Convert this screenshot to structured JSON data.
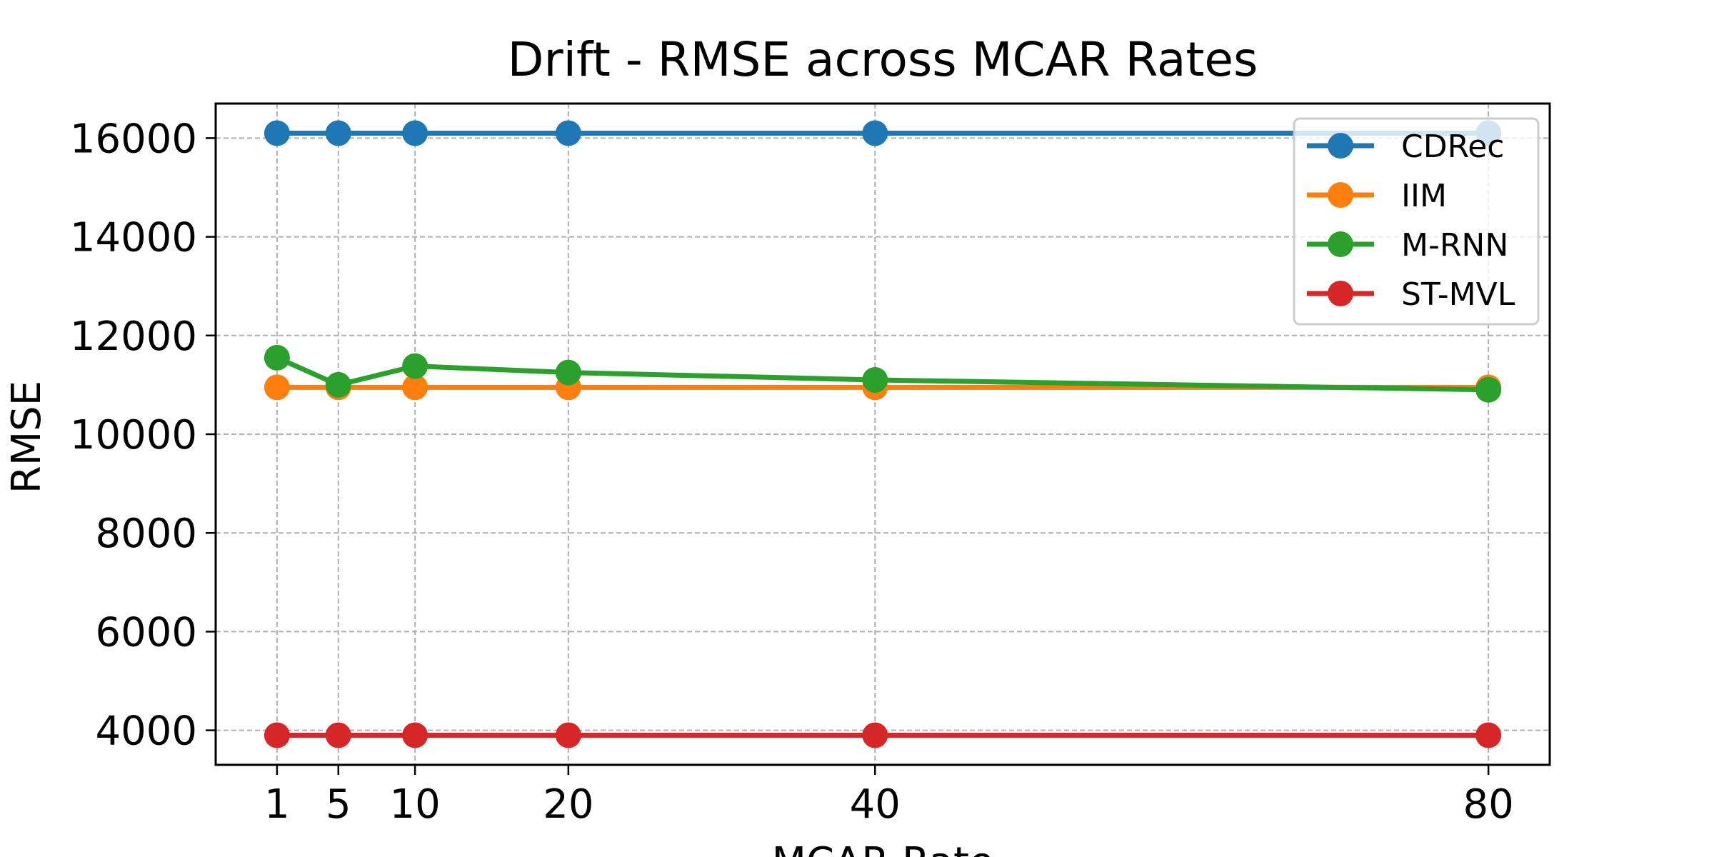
{
  "chart_data": {
    "type": "line",
    "title": "Drift - RMSE across MCAR Rates",
    "xlabel": "MCAR Rate",
    "ylabel": "RMSE",
    "x": [
      1,
      5,
      10,
      20,
      40,
      80
    ],
    "x_tick_labels": [
      "1",
      "5",
      "10",
      "20",
      "40",
      "80"
    ],
    "xlim": [
      -3,
      84
    ],
    "ylim": [
      3300,
      16700
    ],
    "y_ticks": [
      4000,
      6000,
      8000,
      10000,
      12000,
      14000,
      16000
    ],
    "y_tick_labels": [
      "4000",
      "6000",
      "8000",
      "10000",
      "12000",
      "14000",
      "16000"
    ],
    "grid": true,
    "legend_position": "top-right",
    "series": [
      {
        "name": "CDRec",
        "color": "#1f77b4",
        "values": [
          16100,
          16100,
          16100,
          16100,
          16100,
          16100
        ]
      },
      {
        "name": "IIM",
        "color": "#ff7f0e",
        "values": [
          10950,
          10950,
          10950,
          10950,
          10950,
          10950
        ]
      },
      {
        "name": "M-RNN",
        "color": "#2ca02c",
        "values": [
          11550,
          11000,
          11380,
          11250,
          11100,
          10900
        ]
      },
      {
        "name": "ST-MVL",
        "color": "#d62728",
        "values": [
          3900,
          3900,
          3900,
          3900,
          3900,
          3900
        ]
      }
    ]
  }
}
